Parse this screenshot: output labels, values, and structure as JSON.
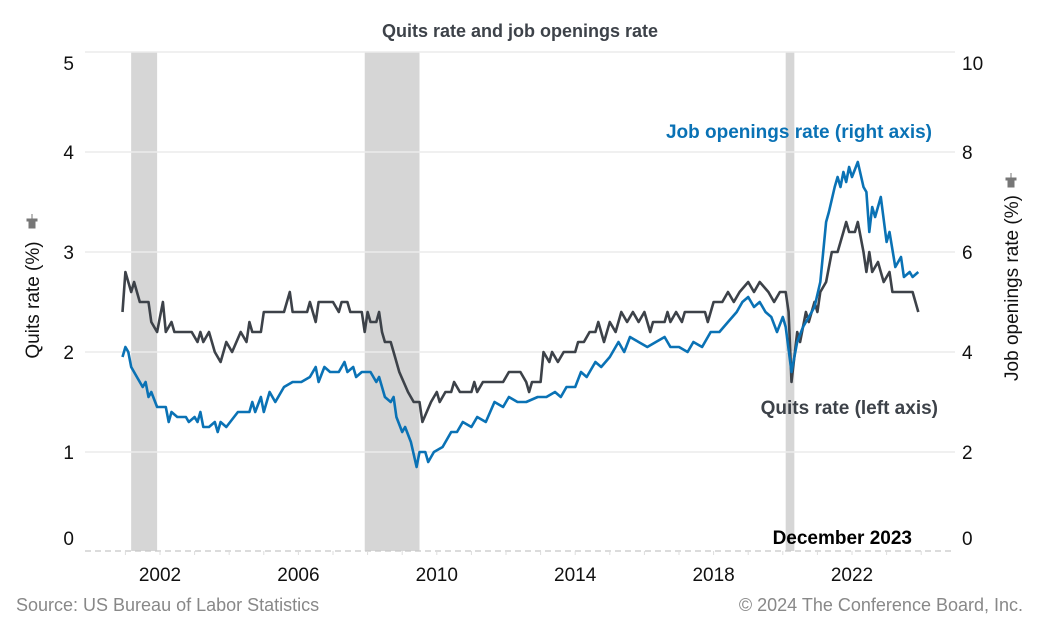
{
  "chart_data": {
    "type": "line",
    "title": "Quits rate and job openings rate",
    "ylabel_left": "Quits rate (%)",
    "ylabel_right": "Job openings rate (%)",
    "ylim_left": [
      0,
      5
    ],
    "ylim_right": [
      0,
      10
    ],
    "yticks_left": [
      "0",
      "1",
      "2",
      "3",
      "4",
      "5"
    ],
    "yticks_right": [
      "0",
      "2",
      "4",
      "6",
      "8",
      "10"
    ],
    "xticks": [
      "2002",
      "2006",
      "2010",
      "2014",
      "2018",
      "2022"
    ],
    "grid": true,
    "recessions": [
      [
        "2001-03",
        "2001-11"
      ],
      [
        "2007-12",
        "2009-06"
      ],
      [
        "2020-02",
        "2020-04"
      ]
    ],
    "annotation_date": "December 2023",
    "series": [
      {
        "name": "Quits rate (left axis)",
        "axis": "left",
        "color": "#3d4249",
        "points": [
          [
            "2000-12",
            2.4
          ],
          [
            "2001-01",
            2.8
          ],
          [
            "2001-03",
            2.6
          ],
          [
            "2001-04",
            2.7
          ],
          [
            "2001-06",
            2.5
          ],
          [
            "2001-09",
            2.5
          ],
          [
            "2001-10",
            2.3
          ],
          [
            "2001-12",
            2.2
          ],
          [
            "2002-02",
            2.5
          ],
          [
            "2002-03",
            2.2
          ],
          [
            "2002-05",
            2.3
          ],
          [
            "2002-06",
            2.2
          ],
          [
            "2002-12",
            2.2
          ],
          [
            "2003-02",
            2.1
          ],
          [
            "2003-03",
            2.2
          ],
          [
            "2003-04",
            2.1
          ],
          [
            "2003-06",
            2.2
          ],
          [
            "2003-08",
            2.0
          ],
          [
            "2003-10",
            1.9
          ],
          [
            "2003-12",
            2.1
          ],
          [
            "2004-02",
            2.0
          ],
          [
            "2004-05",
            2.2
          ],
          [
            "2004-07",
            2.1
          ],
          [
            "2004-08",
            2.3
          ],
          [
            "2004-09",
            2.2
          ],
          [
            "2004-12",
            2.2
          ],
          [
            "2005-01",
            2.4
          ],
          [
            "2005-08",
            2.4
          ],
          [
            "2005-10",
            2.6
          ],
          [
            "2005-11",
            2.4
          ],
          [
            "2006-04",
            2.4
          ],
          [
            "2006-05",
            2.5
          ],
          [
            "2006-07",
            2.3
          ],
          [
            "2006-08",
            2.5
          ],
          [
            "2007-01",
            2.5
          ],
          [
            "2007-03",
            2.4
          ],
          [
            "2007-04",
            2.5
          ],
          [
            "2007-06",
            2.5
          ],
          [
            "2007-07",
            2.4
          ],
          [
            "2007-11",
            2.4
          ],
          [
            "2007-12",
            2.2
          ],
          [
            "2008-01",
            2.4
          ],
          [
            "2008-02",
            2.3
          ],
          [
            "2008-04",
            2.3
          ],
          [
            "2008-05",
            2.4
          ],
          [
            "2008-06",
            2.2
          ],
          [
            "2008-07",
            2.1
          ],
          [
            "2008-09",
            2.1
          ],
          [
            "2008-10",
            2.0
          ],
          [
            "2008-12",
            1.8
          ],
          [
            "2009-03",
            1.6
          ],
          [
            "2009-05",
            1.5
          ],
          [
            "2009-07",
            1.5
          ],
          [
            "2009-08",
            1.3
          ],
          [
            "2009-11",
            1.5
          ],
          [
            "2010-01",
            1.6
          ],
          [
            "2010-02",
            1.5
          ],
          [
            "2010-04",
            1.6
          ],
          [
            "2010-06",
            1.6
          ],
          [
            "2010-07",
            1.7
          ],
          [
            "2010-09",
            1.6
          ],
          [
            "2011-01",
            1.6
          ],
          [
            "2011-02",
            1.7
          ],
          [
            "2011-03",
            1.6
          ],
          [
            "2011-05",
            1.7
          ],
          [
            "2011-12",
            1.7
          ],
          [
            "2012-02",
            1.8
          ],
          [
            "2012-06",
            1.8
          ],
          [
            "2012-08",
            1.7
          ],
          [
            "2012-09",
            1.6
          ],
          [
            "2012-10",
            1.7
          ],
          [
            "2013-01",
            1.7
          ],
          [
            "2013-02",
            2.0
          ],
          [
            "2013-04",
            1.9
          ],
          [
            "2013-05",
            2.0
          ],
          [
            "2013-07",
            1.9
          ],
          [
            "2013-09",
            2.0
          ],
          [
            "2014-01",
            2.0
          ],
          [
            "2014-02",
            2.1
          ],
          [
            "2014-04",
            2.1
          ],
          [
            "2014-06",
            2.2
          ],
          [
            "2014-08",
            2.2
          ],
          [
            "2014-09",
            2.3
          ],
          [
            "2014-11",
            2.1
          ],
          [
            "2015-01",
            2.3
          ],
          [
            "2015-03",
            2.2
          ],
          [
            "2015-05",
            2.4
          ],
          [
            "2015-07",
            2.3
          ],
          [
            "2015-09",
            2.4
          ],
          [
            "2015-11",
            2.3
          ],
          [
            "2016-01",
            2.4
          ],
          [
            "2016-03",
            2.2
          ],
          [
            "2016-04",
            2.3
          ],
          [
            "2016-08",
            2.3
          ],
          [
            "2016-09",
            2.4
          ],
          [
            "2016-10",
            2.3
          ],
          [
            "2016-12",
            2.4
          ],
          [
            "2017-02",
            2.3
          ],
          [
            "2017-03",
            2.4
          ],
          [
            "2017-10",
            2.4
          ],
          [
            "2017-11",
            2.3
          ],
          [
            "2018-01",
            2.5
          ],
          [
            "2018-04",
            2.5
          ],
          [
            "2018-06",
            2.6
          ],
          [
            "2018-08",
            2.5
          ],
          [
            "2018-10",
            2.6
          ],
          [
            "2019-01",
            2.7
          ],
          [
            "2019-03",
            2.6
          ],
          [
            "2019-05",
            2.7
          ],
          [
            "2019-08",
            2.6
          ],
          [
            "2019-10",
            2.5
          ],
          [
            "2019-12",
            2.6
          ],
          [
            "2020-02",
            2.6
          ],
          [
            "2020-03",
            2.4
          ],
          [
            "2020-04",
            1.7
          ],
          [
            "2020-06",
            2.2
          ],
          [
            "2020-07",
            2.1
          ],
          [
            "2020-09",
            2.4
          ],
          [
            "2020-10",
            2.3
          ],
          [
            "2020-12",
            2.5
          ],
          [
            "2021-01",
            2.4
          ],
          [
            "2021-02",
            2.6
          ],
          [
            "2021-04",
            2.7
          ],
          [
            "2021-06",
            3.0
          ],
          [
            "2021-08",
            3.0
          ],
          [
            "2021-09",
            3.1
          ],
          [
            "2021-10",
            3.2
          ],
          [
            "2021-11",
            3.3
          ],
          [
            "2021-12",
            3.2
          ],
          [
            "2022-02",
            3.2
          ],
          [
            "2022-03",
            3.3
          ],
          [
            "2022-05",
            3.0
          ],
          [
            "2022-06",
            2.8
          ],
          [
            "2022-07",
            3.0
          ],
          [
            "2022-08",
            2.8
          ],
          [
            "2022-10",
            2.9
          ],
          [
            "2022-11",
            2.8
          ],
          [
            "2022-12",
            2.7
          ],
          [
            "2023-02",
            2.8
          ],
          [
            "2023-03",
            2.6
          ],
          [
            "2023-05",
            2.6
          ],
          [
            "2023-06",
            2.6
          ],
          [
            "2023-10",
            2.6
          ],
          [
            "2023-12",
            2.4
          ]
        ]
      },
      {
        "name": "Job openings rate (right axis)",
        "axis": "right",
        "color": "#0a72b5",
        "points": [
          [
            "2000-12",
            3.9
          ],
          [
            "2001-01",
            4.1
          ],
          [
            "2001-02",
            4.0
          ],
          [
            "2001-03",
            3.7
          ],
          [
            "2001-05",
            3.5
          ],
          [
            "2001-07",
            3.3
          ],
          [
            "2001-08",
            3.4
          ],
          [
            "2001-09",
            3.1
          ],
          [
            "2001-10",
            3.2
          ],
          [
            "2001-12",
            2.9
          ],
          [
            "2002-03",
            2.9
          ],
          [
            "2002-04",
            2.6
          ],
          [
            "2002-05",
            2.8
          ],
          [
            "2002-07",
            2.7
          ],
          [
            "2002-10",
            2.7
          ],
          [
            "2002-11",
            2.6
          ],
          [
            "2003-01",
            2.7
          ],
          [
            "2003-02",
            2.6
          ],
          [
            "2003-03",
            2.8
          ],
          [
            "2003-04",
            2.5
          ],
          [
            "2003-06",
            2.5
          ],
          [
            "2003-08",
            2.6
          ],
          [
            "2003-09",
            2.4
          ],
          [
            "2003-10",
            2.6
          ],
          [
            "2003-12",
            2.5
          ],
          [
            "2004-04",
            2.8
          ],
          [
            "2004-08",
            2.8
          ],
          [
            "2004-09",
            3.0
          ],
          [
            "2004-10",
            2.8
          ],
          [
            "2004-12",
            3.1
          ],
          [
            "2005-01",
            2.8
          ],
          [
            "2005-03",
            3.2
          ],
          [
            "2005-05",
            3.0
          ],
          [
            "2005-08",
            3.3
          ],
          [
            "2005-11",
            3.4
          ],
          [
            "2006-02",
            3.4
          ],
          [
            "2006-05",
            3.5
          ],
          [
            "2006-07",
            3.7
          ],
          [
            "2006-08",
            3.4
          ],
          [
            "2006-10",
            3.7
          ],
          [
            "2006-12",
            3.6
          ],
          [
            "2007-03",
            3.6
          ],
          [
            "2007-05",
            3.8
          ],
          [
            "2007-06",
            3.6
          ],
          [
            "2007-08",
            3.7
          ],
          [
            "2007-09",
            3.5
          ],
          [
            "2007-11",
            3.6
          ],
          [
            "2008-02",
            3.6
          ],
          [
            "2008-04",
            3.4
          ],
          [
            "2008-05",
            3.5
          ],
          [
            "2008-07",
            3.1
          ],
          [
            "2008-09",
            3.0
          ],
          [
            "2008-10",
            3.1
          ],
          [
            "2008-11",
            2.7
          ],
          [
            "2009-01",
            2.4
          ],
          [
            "2009-02",
            2.5
          ],
          [
            "2009-04",
            2.2
          ],
          [
            "2009-06",
            1.7
          ],
          [
            "2009-07",
            2.0
          ],
          [
            "2009-09",
            2.0
          ],
          [
            "2009-10",
            1.8
          ],
          [
            "2009-12",
            2.0
          ],
          [
            "2010-03",
            2.1
          ],
          [
            "2010-06",
            2.4
          ],
          [
            "2010-08",
            2.4
          ],
          [
            "2010-10",
            2.6
          ],
          [
            "2011-01",
            2.5
          ],
          [
            "2011-03",
            2.7
          ],
          [
            "2011-06",
            2.6
          ],
          [
            "2011-09",
            3.0
          ],
          [
            "2011-12",
            2.9
          ],
          [
            "2012-02",
            3.1
          ],
          [
            "2012-05",
            3.0
          ],
          [
            "2012-08",
            3.0
          ],
          [
            "2012-12",
            3.1
          ],
          [
            "2013-03",
            3.1
          ],
          [
            "2013-06",
            3.2
          ],
          [
            "2013-08",
            3.1
          ],
          [
            "2013-10",
            3.3
          ],
          [
            "2014-01",
            3.3
          ],
          [
            "2014-03",
            3.6
          ],
          [
            "2014-05",
            3.5
          ],
          [
            "2014-08",
            3.8
          ],
          [
            "2014-10",
            3.7
          ],
          [
            "2015-01",
            3.9
          ],
          [
            "2015-04",
            4.2
          ],
          [
            "2015-06",
            4.0
          ],
          [
            "2015-08",
            4.3
          ],
          [
            "2015-11",
            4.2
          ],
          [
            "2016-02",
            4.1
          ],
          [
            "2016-05",
            4.2
          ],
          [
            "2016-08",
            4.3
          ],
          [
            "2016-10",
            4.1
          ],
          [
            "2017-01",
            4.1
          ],
          [
            "2017-04",
            4.0
          ],
          [
            "2017-06",
            4.2
          ],
          [
            "2017-09",
            4.1
          ],
          [
            "2017-12",
            4.4
          ],
          [
            "2018-03",
            4.4
          ],
          [
            "2018-06",
            4.6
          ],
          [
            "2018-09",
            4.8
          ],
          [
            "2018-11",
            5.0
          ],
          [
            "2019-01",
            5.1
          ],
          [
            "2019-03",
            4.9
          ],
          [
            "2019-05",
            5.0
          ],
          [
            "2019-07",
            4.8
          ],
          [
            "2019-09",
            4.7
          ],
          [
            "2019-11",
            4.4
          ],
          [
            "2020-01",
            4.7
          ],
          [
            "2020-02",
            4.5
          ],
          [
            "2020-04",
            3.6
          ],
          [
            "2020-06",
            4.2
          ],
          [
            "2020-08",
            4.5
          ],
          [
            "2020-10",
            4.7
          ],
          [
            "2020-12",
            4.9
          ],
          [
            "2021-02",
            5.4
          ],
          [
            "2021-04",
            6.6
          ],
          [
            "2021-05",
            6.8
          ],
          [
            "2021-07",
            7.3
          ],
          [
            "2021-08",
            7.5
          ],
          [
            "2021-09",
            7.3
          ],
          [
            "2021-10",
            7.6
          ],
          [
            "2021-11",
            7.4
          ],
          [
            "2021-12",
            7.7
          ],
          [
            "2022-01",
            7.5
          ],
          [
            "2022-03",
            7.8
          ],
          [
            "2022-05",
            7.3
          ],
          [
            "2022-06",
            7.2
          ],
          [
            "2022-07",
            6.4
          ],
          [
            "2022-08",
            6.9
          ],
          [
            "2022-09",
            6.7
          ],
          [
            "2022-11",
            7.1
          ],
          [
            "2023-01",
            6.2
          ],
          [
            "2023-02",
            6.4
          ],
          [
            "2023-04",
            5.7
          ],
          [
            "2023-06",
            5.9
          ],
          [
            "2023-07",
            5.5
          ],
          [
            "2023-09",
            5.6
          ],
          [
            "2023-10",
            5.5
          ],
          [
            "2023-12",
            5.6
          ]
        ]
      }
    ]
  },
  "labels": {
    "series_left_label": "Quits rate (left axis)",
    "series_right_label": "Job openings rate (right axis)"
  },
  "footer": {
    "source": "Source: US Bureau of Labor Statistics",
    "copyright": "© 2024 The Conference Board, Inc."
  },
  "icons": {
    "axis_pin": "pin-icon"
  }
}
